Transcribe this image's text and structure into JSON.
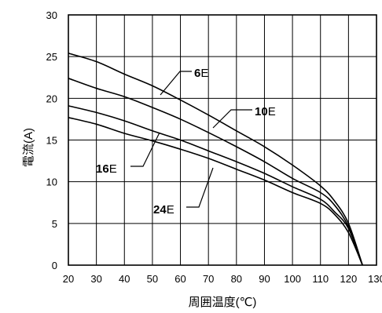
{
  "chart_data": {
    "type": "line",
    "xlabel": "周囲温度(℃)",
    "ylabel": "電流(A)",
    "xlim": [
      20,
      130
    ],
    "ylim": [
      0,
      30
    ],
    "x_ticks": [
      "20",
      "30",
      "40",
      "50",
      "60",
      "70",
      "80",
      "90",
      "100",
      "110",
      "120",
      "130"
    ],
    "y_ticks": [
      "0",
      "5",
      "10",
      "15",
      "20",
      "25",
      "30"
    ],
    "grid": true,
    "series": [
      {
        "name": "6E",
        "label_number": "6",
        "label_suffix": "E",
        "x": [
          20,
          30,
          40,
          50,
          60,
          70,
          80,
          90,
          100,
          110,
          115,
          120,
          125
        ],
        "y": [
          25.4,
          24.4,
          22.9,
          21.5,
          19.8,
          18.0,
          16.1,
          14.2,
          12.0,
          9.5,
          7.7,
          5.0,
          0.0
        ]
      },
      {
        "name": "10E",
        "label_number": "10",
        "label_suffix": "E",
        "x": [
          20,
          30,
          40,
          50,
          60,
          70,
          80,
          90,
          100,
          110,
          115,
          120,
          125
        ],
        "y": [
          22.4,
          21.2,
          20.2,
          18.9,
          17.5,
          15.9,
          14.2,
          12.4,
          10.4,
          8.7,
          7.2,
          4.6,
          0.0
        ]
      },
      {
        "name": "16E",
        "label_number": "16",
        "label_suffix": "E",
        "x": [
          20,
          30,
          40,
          50,
          60,
          70,
          80,
          90,
          100,
          110,
          115,
          120,
          125
        ],
        "y": [
          19.1,
          18.3,
          17.3,
          16.1,
          15.0,
          13.7,
          12.4,
          11.0,
          9.4,
          7.9,
          6.4,
          4.4,
          0.0
        ]
      },
      {
        "name": "24E",
        "label_number": "24",
        "label_suffix": "E",
        "x": [
          20,
          30,
          40,
          50,
          60,
          70,
          80,
          90,
          100,
          110,
          115,
          120,
          125
        ],
        "y": [
          17.7,
          16.9,
          15.8,
          14.9,
          13.9,
          12.8,
          11.5,
          10.2,
          8.7,
          7.4,
          6.1,
          3.9,
          0.0
        ]
      }
    ]
  }
}
